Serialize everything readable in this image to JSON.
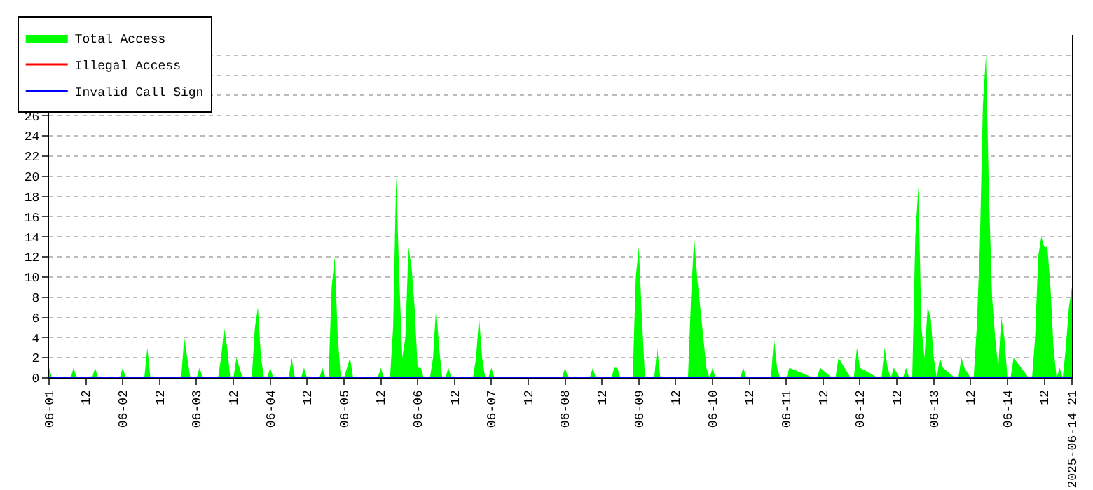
{
  "chart_data": {
    "type": "area",
    "legend": "top left",
    "grid": "y",
    "line_style": "solid",
    "xlim": [
      "2025-06-01T00:00",
      "2025-06-14T21:00"
    ],
    "ylim": [
      0,
      34
    ],
    "yticks": [
      0,
      2,
      4,
      6,
      8,
      10,
      12,
      14,
      16,
      18,
      20,
      22,
      24,
      26,
      {
        "value": 28,
        "label": null
      },
      {
        "value": 30,
        "label": null
      },
      {
        "value": 32,
        "label": null
      },
      {
        "value": 34,
        "label": null
      }
    ],
    "xticks": [
      {
        "value": "2025-06-01T00:00",
        "label": "06-01"
      },
      {
        "value": "2025-06-01T12:00",
        "label": "12"
      },
      {
        "value": "2025-06-02T00:00",
        "label": "06-02"
      },
      {
        "value": "2025-06-02T12:00",
        "label": "12"
      },
      {
        "value": "2025-06-03T00:00",
        "label": "06-03"
      },
      {
        "value": "2025-06-03T12:00",
        "label": "12"
      },
      {
        "value": "2025-06-04T00:00",
        "label": "06-04"
      },
      {
        "value": "2025-06-04T12:00",
        "label": "12"
      },
      {
        "value": "2025-06-05T00:00",
        "label": "06-05"
      },
      {
        "value": "2025-06-05T12:00",
        "label": "12"
      },
      {
        "value": "2025-06-06T00:00",
        "label": "06-06"
      },
      {
        "value": "2025-06-06T12:00",
        "label": "12"
      },
      {
        "value": "2025-06-07T00:00",
        "label": "06-07"
      },
      {
        "value": "2025-06-07T12:00",
        "label": "12"
      },
      {
        "value": "2025-06-08T00:00",
        "label": "06-08"
      },
      {
        "value": "2025-06-08T12:00",
        "label": "12"
      },
      {
        "value": "2025-06-09T00:00",
        "label": "06-09"
      },
      {
        "value": "2025-06-09T12:00",
        "label": "12"
      },
      {
        "value": "2025-06-10T00:00",
        "label": "06-10"
      },
      {
        "value": "2025-06-10T12:00",
        "label": "12"
      },
      {
        "value": "2025-06-11T00:00",
        "label": "06-11"
      },
      {
        "value": "2025-06-11T12:00",
        "label": "12"
      },
      {
        "value": "2025-06-12T00:00",
        "label": "06-12"
      },
      {
        "value": "2025-06-12T12:00",
        "label": "12"
      },
      {
        "value": "2025-06-13T00:00",
        "label": "06-13"
      },
      {
        "value": "2025-06-13T12:00",
        "label": "12"
      },
      {
        "value": "2025-06-14T00:00",
        "label": "06-14"
      },
      {
        "value": "2025-06-14T12:00",
        "label": "12"
      },
      {
        "value": "2025-06-14T21:00",
        "label": "2025-06-14 21"
      }
    ],
    "series": [
      {
        "name": "Total Access",
        "color": "#00ff00",
        "x": [
          "2025-06-01T00:00",
          "2025-06-01T01:00",
          "2025-06-01T07:00",
          "2025-06-01T08:00",
          "2025-06-01T09:00",
          "2025-06-01T14:00",
          "2025-06-01T15:00",
          "2025-06-01T16:00",
          "2025-06-01T23:00",
          "2025-06-02T00:00",
          "2025-06-02T01:00",
          "2025-06-02T07:00",
          "2025-06-02T08:00",
          "2025-06-02T09:00",
          "2025-06-02T19:00",
          "2025-06-02T20:00",
          "2025-06-02T21:00",
          "2025-06-02T22:00",
          "2025-06-03T00:00",
          "2025-06-03T01:00",
          "2025-06-03T02:00",
          "2025-06-03T07:00",
          "2025-06-03T08:00",
          "2025-06-03T09:00",
          "2025-06-03T10:00",
          "2025-06-03T11:00",
          "2025-06-03T12:00",
          "2025-06-03T13:00",
          "2025-06-03T14:00",
          "2025-06-03T15:00",
          "2025-06-03T18:00",
          "2025-06-03T19:00",
          "2025-06-03T20:00",
          "2025-06-03T21:00",
          "2025-06-03T22:00",
          "2025-06-03T23:00",
          "2025-06-04T00:00",
          "2025-06-04T01:00",
          "2025-06-04T06:00",
          "2025-06-04T07:00",
          "2025-06-04T08:00",
          "2025-06-04T10:00",
          "2025-06-04T11:00",
          "2025-06-04T12:00",
          "2025-06-04T16:00",
          "2025-06-04T17:00",
          "2025-06-04T18:00",
          "2025-06-04T19:00",
          "2025-06-04T20:00",
          "2025-06-04T21:00",
          "2025-06-04T22:00",
          "2025-06-04T23:00",
          "2025-06-05T00:00",
          "2025-06-05T01:00",
          "2025-06-05T02:00",
          "2025-06-05T03:00",
          "2025-06-05T11:00",
          "2025-06-05T12:00",
          "2025-06-05T13:00",
          "2025-06-05T15:00",
          "2025-06-05T16:00",
          "2025-06-05T17:00",
          "2025-06-05T18:00",
          "2025-06-05T19:00",
          "2025-06-05T20:00",
          "2025-06-05T21:00",
          "2025-06-05T22:00",
          "2025-06-05T23:00",
          "2025-06-06T00:00",
          "2025-06-06T01:00",
          "2025-06-06T02:00",
          "2025-06-06T04:00",
          "2025-06-06T05:00",
          "2025-06-06T06:00",
          "2025-06-06T07:00",
          "2025-06-06T08:00",
          "2025-06-06T09:00",
          "2025-06-06T10:00",
          "2025-06-06T11:00",
          "2025-06-06T18:00",
          "2025-06-06T19:00",
          "2025-06-06T20:00",
          "2025-06-06T21:00",
          "2025-06-06T22:00",
          "2025-06-06T23:00",
          "2025-06-07T00:00",
          "2025-06-07T01:00",
          "2025-06-07T23:00",
          "2025-06-08T00:00",
          "2025-06-08T01:00",
          "2025-06-08T08:00",
          "2025-06-08T09:00",
          "2025-06-08T10:00",
          "2025-06-08T15:00",
          "2025-06-08T16:00",
          "2025-06-08T17:00",
          "2025-06-08T18:00",
          "2025-06-08T22:00",
          "2025-06-08T23:00",
          "2025-06-09T00:00",
          "2025-06-09T01:00",
          "2025-06-09T02:00",
          "2025-06-09T05:00",
          "2025-06-09T06:00",
          "2025-06-09T07:00",
          "2025-06-09T16:00",
          "2025-06-09T17:00",
          "2025-06-09T18:00",
          "2025-06-09T19:00",
          "2025-06-09T20:00",
          "2025-06-09T21:00",
          "2025-06-09T22:00",
          "2025-06-09T23:00",
          "2025-06-10T00:00",
          "2025-06-10T01:00",
          "2025-06-10T09:00",
          "2025-06-10T10:00",
          "2025-06-10T11:00",
          "2025-06-10T19:00",
          "2025-06-10T20:00",
          "2025-06-10T21:00",
          "2025-06-10T22:00",
          "2025-06-11T00:00",
          "2025-06-11T01:00",
          "2025-06-11T09:00",
          "2025-06-11T10:00",
          "2025-06-11T11:00",
          "2025-06-11T15:00",
          "2025-06-11T16:00",
          "2025-06-11T17:00",
          "2025-06-11T21:00",
          "2025-06-11T22:00",
          "2025-06-11T23:00",
          "2025-06-12T00:00",
          "2025-06-12T06:00",
          "2025-06-12T07:00",
          "2025-06-12T08:00",
          "2025-06-12T09:00",
          "2025-06-12T10:00",
          "2025-06-12T11:00",
          "2025-06-12T13:00",
          "2025-06-12T14:00",
          "2025-06-12T15:00",
          "2025-06-12T16:00",
          "2025-06-12T17:00",
          "2025-06-12T18:00",
          "2025-06-12T19:00",
          "2025-06-12T20:00",
          "2025-06-12T21:00",
          "2025-06-12T22:00",
          "2025-06-12T23:00",
          "2025-06-13T00:00",
          "2025-06-13T01:00",
          "2025-06-13T02:00",
          "2025-06-13T03:00",
          "2025-06-13T07:00",
          "2025-06-13T08:00",
          "2025-06-13T09:00",
          "2025-06-13T10:00",
          "2025-06-13T12:00",
          "2025-06-13T13:00",
          "2025-06-13T14:00",
          "2025-06-13T15:00",
          "2025-06-13T16:00",
          "2025-06-13T17:00",
          "2025-06-13T18:00",
          "2025-06-13T19:00",
          "2025-06-13T20:00",
          "2025-06-13T21:00",
          "2025-06-13T22:00",
          "2025-06-13T23:00",
          "2025-06-14T00:00",
          "2025-06-14T01:00",
          "2025-06-14T02:00",
          "2025-06-14T07:00",
          "2025-06-14T08:00",
          "2025-06-14T09:00",
          "2025-06-14T10:00",
          "2025-06-14T11:00",
          "2025-06-14T12:00",
          "2025-06-14T13:00",
          "2025-06-14T14:00",
          "2025-06-14T15:00",
          "2025-06-14T16:00",
          "2025-06-14T17:00",
          "2025-06-14T18:00",
          "2025-06-14T19:00",
          "2025-06-14T20:00",
          "2025-06-14T21:00"
        ],
        "values": [
          1,
          0,
          0,
          1,
          0,
          0,
          1,
          0,
          0,
          1,
          0,
          0,
          3,
          0,
          0,
          4,
          2,
          0,
          0,
          1,
          0,
          0,
          2,
          5,
          3,
          0,
          0,
          2,
          1,
          0,
          0,
          5,
          7,
          2,
          0,
          0,
          1,
          0,
          0,
          2,
          0,
          0,
          1,
          0,
          0,
          1,
          0,
          0,
          9,
          12,
          4,
          0,
          0,
          1,
          2,
          0,
          0,
          1,
          0,
          0,
          5,
          20,
          10,
          2,
          4,
          13,
          11,
          7,
          1,
          1,
          0,
          0,
          2,
          7,
          3,
          0,
          0,
          1,
          0,
          0,
          2,
          6,
          2,
          0,
          0,
          1,
          0,
          0,
          1,
          0,
          0,
          1,
          0,
          0,
          1,
          1,
          0,
          0,
          10,
          13,
          6,
          0,
          0,
          3,
          0,
          0,
          8,
          14,
          10,
          7,
          4,
          1,
          0,
          1,
          0,
          0,
          1,
          0,
          0,
          4,
          1,
          0,
          0,
          1,
          0,
          0,
          1,
          0,
          0,
          2,
          0,
          0,
          3,
          1,
          0,
          0,
          3,
          1,
          0,
          1,
          0,
          0,
          1,
          0,
          0,
          14,
          19,
          5,
          2,
          7,
          6,
          2,
          0,
          2,
          1,
          0,
          0,
          2,
          1,
          0,
          0,
          5,
          13,
          27,
          32,
          18,
          8,
          4,
          1,
          6,
          4,
          0,
          0,
          2,
          0,
          0,
          4,
          12,
          14,
          13,
          13,
          9,
          3,
          0,
          1,
          0,
          3,
          7,
          9
        ]
      },
      {
        "name": "Illegal Access",
        "color": "#ff0000",
        "type": "line",
        "values": [
          null,
          null
        ]
      },
      {
        "name": "Invalid Call Sign",
        "color": "#0000ff",
        "type": "line",
        "x": [
          "2025-06-01T00:00",
          "2025-06-14T21:00"
        ],
        "values": [
          0,
          0
        ]
      }
    ]
  }
}
